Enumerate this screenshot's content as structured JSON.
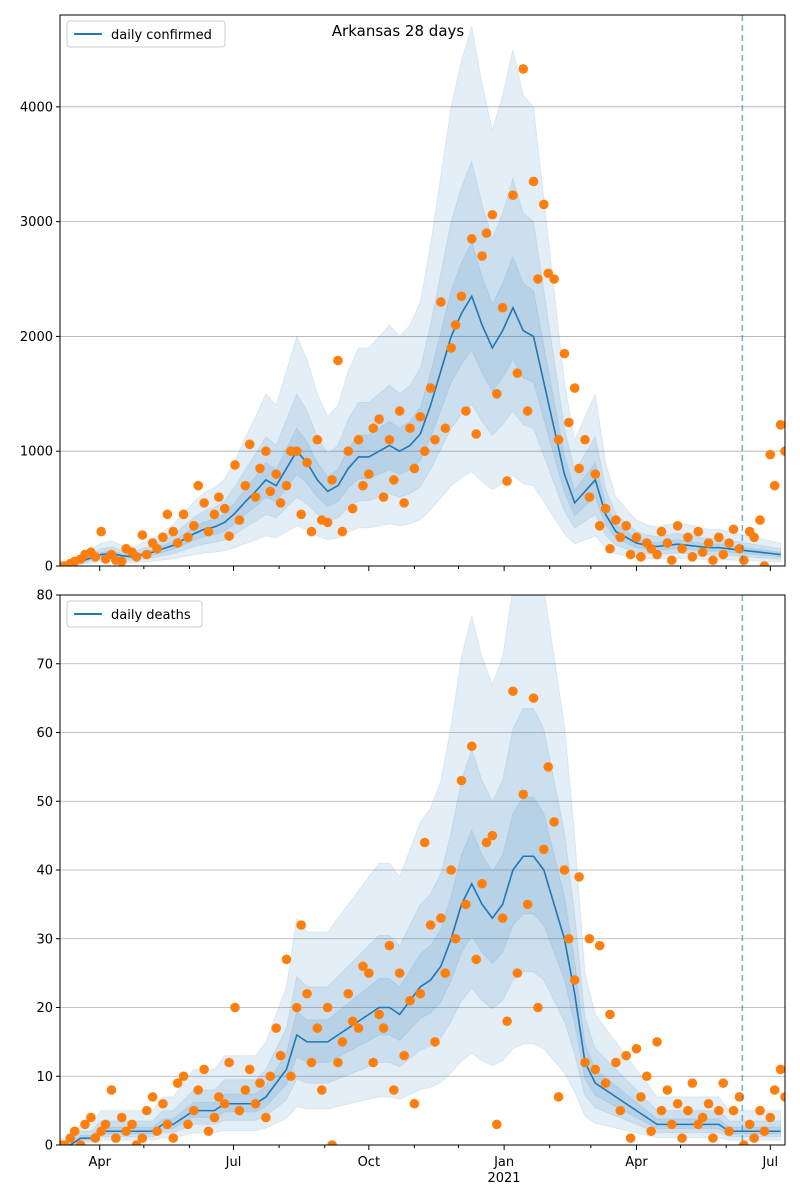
{
  "title": "Arkansas 28 days",
  "colors": {
    "model": "#1f77b4",
    "observed": "#ff7f0e",
    "band": "#1f77b4",
    "grid": "#b0b0b0"
  },
  "chart_data": [
    {
      "type": "line",
      "name": "confirmed",
      "title": "Arkansas 28 days",
      "legend": "daily confirmed",
      "legend_position": "top-left",
      "start_date": "2020-03-05",
      "step_days": 7,
      "xlim": [
        "2020-03-05",
        "2021-07-11"
      ],
      "ylim": [
        0,
        4800
      ],
      "yticks": [
        0,
        1000,
        2000,
        3000,
        4000
      ],
      "grid": "y",
      "median": [
        0,
        20,
        40,
        70,
        100,
        110,
        90,
        80,
        100,
        120,
        150,
        180,
        230,
        280,
        320,
        340,
        380,
        460,
        560,
        650,
        750,
        700,
        850,
        1000,
        900,
        750,
        650,
        700,
        850,
        950,
        950,
        1000,
        1050,
        1000,
        1050,
        1150,
        1400,
        1700,
        2000,
        2200,
        2350,
        2100,
        1900,
        2050,
        2250,
        2050,
        2000,
        1600,
        1200,
        800,
        550,
        650,
        750,
        450,
        300,
        250,
        200,
        180,
        170,
        180,
        190,
        180,
        170,
        160,
        160,
        150,
        140,
        130,
        120,
        110,
        100
      ],
      "band_factors": [
        [
          0.35,
          2.0
        ],
        [
          0.6,
          1.5
        ],
        [
          0.8,
          1.2
        ]
      ],
      "observed_offsets_days": [
        0,
        3
      ],
      "observed": [
        [
          0,
          0
        ],
        [
          20,
          40
        ],
        [
          60,
          100
        ],
        [
          120,
          80
        ],
        [
          300,
          60
        ],
        [
          100,
          50
        ],
        [
          40,
          150
        ],
        [
          120,
          80
        ],
        [
          270,
          100
        ],
        [
          200,
          150
        ],
        [
          250,
          450
        ],
        [
          300,
          200
        ],
        [
          450,
          250
        ],
        [
          350,
          700
        ],
        [
          550,
          300
        ],
        [
          450,
          600
        ],
        [
          500,
          260
        ],
        [
          880,
          400
        ],
        [
          700,
          1060
        ],
        [
          600,
          850
        ],
        [
          1000,
          650
        ],
        [
          800,
          550
        ],
        [
          700,
          1000
        ],
        [
          1000,
          450
        ],
        [
          900,
          300
        ],
        [
          1100,
          400
        ],
        [
          380,
          750
        ],
        [
          1790,
          300
        ],
        [
          1000,
          500
        ],
        [
          1100,
          700
        ],
        [
          800,
          1200
        ],
        [
          1280,
          600
        ],
        [
          1100,
          750
        ],
        [
          1350,
          550
        ],
        [
          1200,
          850
        ],
        [
          1300,
          1000
        ],
        [
          1550,
          1100
        ],
        [
          2300,
          1200
        ],
        [
          1900,
          2100
        ],
        [
          2350,
          1350
        ],
        [
          2850,
          1150
        ],
        [
          2700,
          2900
        ],
        [
          3060,
          1500
        ],
        [
          2250,
          740
        ],
        [
          3230,
          1680
        ],
        [
          4330,
          1350
        ],
        [
          3350,
          2500
        ],
        [
          3150,
          2550
        ],
        [
          2500,
          1100
        ],
        [
          1850,
          1250
        ],
        [
          1550,
          850
        ],
        [
          1100,
          600
        ],
        [
          800,
          350
        ],
        [
          500,
          150
        ],
        [
          400,
          250
        ],
        [
          350,
          100
        ],
        [
          250,
          80
        ],
        [
          200,
          150
        ],
        [
          100,
          300
        ],
        [
          200,
          50
        ],
        [
          350,
          150
        ],
        [
          250,
          80
        ],
        [
          300,
          120
        ],
        [
          200,
          50
        ],
        [
          250,
          100
        ],
        [
          200,
          320
        ],
        [
          150,
          50
        ],
        [
          300,
          250
        ],
        [
          400,
          0
        ],
        [
          970,
          700
        ],
        [
          1230,
          1000
        ]
      ],
      "vline_date": "2021-06-12"
    },
    {
      "type": "line",
      "name": "deaths",
      "legend": "daily deaths",
      "legend_position": "top-left",
      "start_date": "2020-03-05",
      "step_days": 7,
      "xlim": [
        "2020-03-05",
        "2021-07-11"
      ],
      "ylim": [
        0,
        80
      ],
      "yticks": [
        0,
        10,
        20,
        30,
        40,
        50,
        60,
        70,
        80
      ],
      "grid": "y",
      "median": [
        0,
        0,
        1,
        1,
        2,
        2,
        2,
        2,
        2,
        2,
        3,
        3,
        4,
        5,
        5,
        5,
        6,
        6,
        6,
        6,
        7,
        9,
        11,
        16,
        15,
        15,
        15,
        16,
        17,
        18,
        19,
        20,
        20,
        19,
        21,
        23,
        24,
        26,
        30,
        35,
        38,
        35,
        33,
        35,
        40,
        42,
        42,
        40,
        35,
        30,
        22,
        12,
        9,
        8,
        7,
        6,
        5,
        4,
        3,
        3,
        3,
        3,
        3,
        3,
        3,
        2,
        2,
        2,
        2,
        2,
        2
      ],
      "band_factors": [
        [
          0.35,
          2.0
        ],
        [
          0.6,
          1.5
        ],
        [
          0.8,
          1.2
        ]
      ],
      "observed_offsets_days": [
        0,
        3
      ],
      "observed": [
        [
          0,
          0
        ],
        [
          1,
          2
        ],
        [
          0,
          3
        ],
        [
          4,
          1
        ],
        [
          2,
          3
        ],
        [
          8,
          1
        ],
        [
          4,
          2
        ],
        [
          3,
          0
        ],
        [
          1,
          5
        ],
        [
          7,
          2
        ],
        [
          6,
          3
        ],
        [
          1,
          9
        ],
        [
          10,
          3
        ],
        [
          5,
          8
        ],
        [
          11,
          2
        ],
        [
          4,
          7
        ],
        [
          6,
          12
        ],
        [
          20,
          5
        ],
        [
          8,
          11
        ],
        [
          6,
          9
        ],
        [
          4,
          10
        ],
        [
          17,
          13
        ],
        [
          27,
          10
        ],
        [
          20,
          32
        ],
        [
          22,
          12
        ],
        [
          17,
          8
        ],
        [
          20,
          0
        ],
        [
          12,
          15
        ],
        [
          22,
          18
        ],
        [
          17,
          26
        ],
        [
          25,
          12
        ],
        [
          19,
          17
        ],
        [
          29,
          8
        ],
        [
          25,
          13
        ],
        [
          21,
          6
        ],
        [
          22,
          44
        ],
        [
          32,
          15
        ],
        [
          33,
          25
        ],
        [
          40,
          30
        ],
        [
          53,
          35
        ],
        [
          58,
          27
        ],
        [
          38,
          44
        ],
        [
          45,
          3
        ],
        [
          33,
          18
        ],
        [
          66,
          25
        ],
        [
          51,
          35
        ],
        [
          65,
          20
        ],
        [
          43,
          55
        ],
        [
          47,
          7
        ],
        [
          40,
          30
        ],
        [
          24,
          39
        ],
        [
          12,
          30
        ],
        [
          11,
          29
        ],
        [
          9,
          19
        ],
        [
          12,
          5
        ],
        [
          13,
          1
        ],
        [
          14,
          7
        ],
        [
          10,
          2
        ],
        [
          15,
          5
        ],
        [
          8,
          3
        ],
        [
          6,
          1
        ],
        [
          5,
          9
        ],
        [
          3,
          4
        ],
        [
          6,
          1
        ],
        [
          5,
          9
        ],
        [
          2,
          5
        ],
        [
          7,
          0
        ],
        [
          3,
          1
        ],
        [
          5,
          2
        ],
        [
          4,
          8
        ],
        [
          11,
          7
        ]
      ],
      "vline_date": "2021-06-12"
    }
  ],
  "xaxis": {
    "major_ticks": [
      {
        "date": "2020-04-01",
        "label": "Apr"
      },
      {
        "date": "2020-07-01",
        "label": "Jul"
      },
      {
        "date": "2020-10-01",
        "label": "Oct"
      },
      {
        "date": "2021-01-01",
        "label": "Jan"
      },
      {
        "date": "2021-04-01",
        "label": "Apr"
      },
      {
        "date": "2021-07-01",
        "label": "Jul"
      }
    ],
    "year_label": "2021",
    "minor_ticks": [
      "2020-05-01",
      "2020-06-01",
      "2020-08-01",
      "2020-09-01",
      "2020-11-01",
      "2020-12-01",
      "2021-02-01",
      "2021-03-01",
      "2021-05-01",
      "2021-06-01"
    ]
  }
}
